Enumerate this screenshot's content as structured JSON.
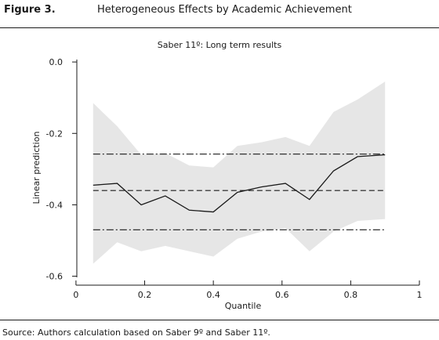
{
  "figure": {
    "label": "Figure 3.",
    "title": "Heterogeneous Effects by Academic Achievement",
    "source": "Source: Authors calculation based on Saber 9º and Saber 11º."
  },
  "chart_data": {
    "type": "line",
    "title": "Saber 11º: Long term results",
    "xlabel": "Quantile",
    "ylabel": "Linear prediction",
    "xlim": [
      -0.05,
      1.0
    ],
    "ylim": [
      -0.625,
      0.02
    ],
    "xticks": [
      0,
      0.2,
      0.4,
      0.6,
      0.8,
      1
    ],
    "xtick_labels": [
      "0",
      "0.2",
      "0.4",
      "0.6",
      "0.8",
      "1"
    ],
    "yticks": [
      0.0,
      -0.2,
      -0.4,
      -0.6
    ],
    "ytick_labels": [
      "0.0",
      "-0.2",
      "-0.4",
      "-0.6"
    ],
    "grid": false,
    "x": [
      0.05,
      0.12,
      0.19,
      0.26,
      0.33,
      0.4,
      0.47,
      0.54,
      0.61,
      0.68,
      0.75,
      0.82,
      0.9
    ],
    "series": [
      {
        "values": [
          -0.345,
          -0.34,
          -0.4,
          -0.375,
          -0.415,
          -0.42,
          -0.365,
          -0.35,
          -0.34,
          -0.385,
          -0.305,
          -0.265,
          -0.26
        ]
      },
      {
        "values": [
          -0.115,
          -0.18,
          -0.26,
          -0.255,
          -0.29,
          -0.295,
          -0.235,
          -0.225,
          -0.21,
          -0.235,
          -0.14,
          -0.105,
          -0.055
        ]
      },
      {
        "values": [
          -0.565,
          -0.505,
          -0.53,
          -0.515,
          -0.53,
          -0.545,
          -0.495,
          -0.475,
          -0.465,
          -0.53,
          -0.475,
          -0.445,
          -0.44
        ]
      }
    ],
    "reference_lines": [
      {
        "y": -0.258,
        "style": "dash-dot"
      },
      {
        "y": -0.36,
        "style": "dashed"
      },
      {
        "y": -0.47,
        "style": "dash-dot"
      }
    ],
    "colors": {
      "band": "#e6e6e6",
      "line": "#1a1a1a",
      "axis": "#1a1a1a"
    }
  }
}
